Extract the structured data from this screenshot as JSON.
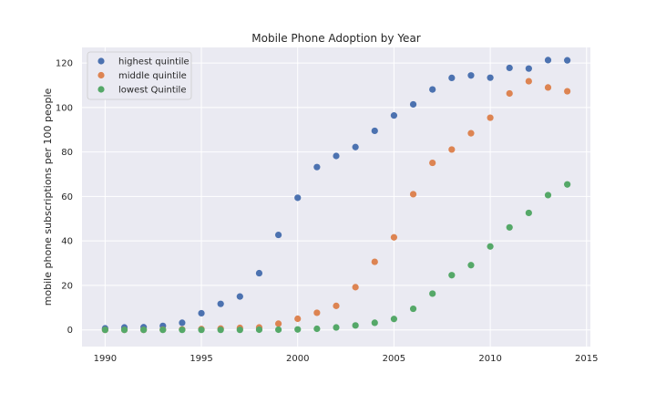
{
  "chart_data": {
    "type": "scatter",
    "title": "Mobile Phone Adoption by Year",
    "xlabel": "",
    "ylabel": "mobile phone subscriptions per 100 people",
    "xlim": [
      1988.8,
      2015.2
    ],
    "ylim": [
      -7.5,
      127
    ],
    "xticks": [
      1990,
      1995,
      2000,
      2005,
      2010,
      2015
    ],
    "yticks": [
      0,
      20,
      40,
      60,
      80,
      100,
      120
    ],
    "grid": true,
    "legend_position": "top-left",
    "x": [
      1990,
      1991,
      1992,
      1993,
      1994,
      1995,
      1996,
      1997,
      1998,
      1999,
      2000,
      2001,
      2002,
      2003,
      2004,
      2005,
      2006,
      2007,
      2008,
      2009,
      2010,
      2011,
      2012,
      2013,
      2014
    ],
    "series": [
      {
        "name": "highest quintile",
        "color": "#4c72b0",
        "values": [
          0.7,
          1.1,
          1.2,
          1.8,
          3.2,
          7.5,
          11.7,
          15,
          25.5,
          42.7,
          59.4,
          73.2,
          78.2,
          82.2,
          89.5,
          96.4,
          101.4,
          108.1,
          113.3,
          114.4,
          113.4,
          117.8,
          117.5,
          121.3,
          121.2
        ]
      },
      {
        "name": "middle quintile",
        "color": "#dd8452",
        "values": [
          0,
          0,
          0,
          0.1,
          0.2,
          0.4,
          0.6,
          0.9,
          1.1,
          2.8,
          5,
          7.7,
          10.8,
          19.2,
          30.6,
          41.6,
          61,
          75.1,
          81.1,
          88.4,
          95.4,
          106.3,
          111.8,
          109,
          107.3
        ]
      },
      {
        "name": "lowest Quintile",
        "color": "#55a868",
        "values": [
          0,
          0,
          0,
          0,
          0,
          0,
          0,
          0,
          0.1,
          0.1,
          0.2,
          0.5,
          1.1,
          2,
          3.2,
          4.9,
          9.5,
          16.3,
          24.6,
          29.1,
          37.5,
          46.1,
          52.6,
          60.6,
          65.4
        ]
      }
    ]
  }
}
